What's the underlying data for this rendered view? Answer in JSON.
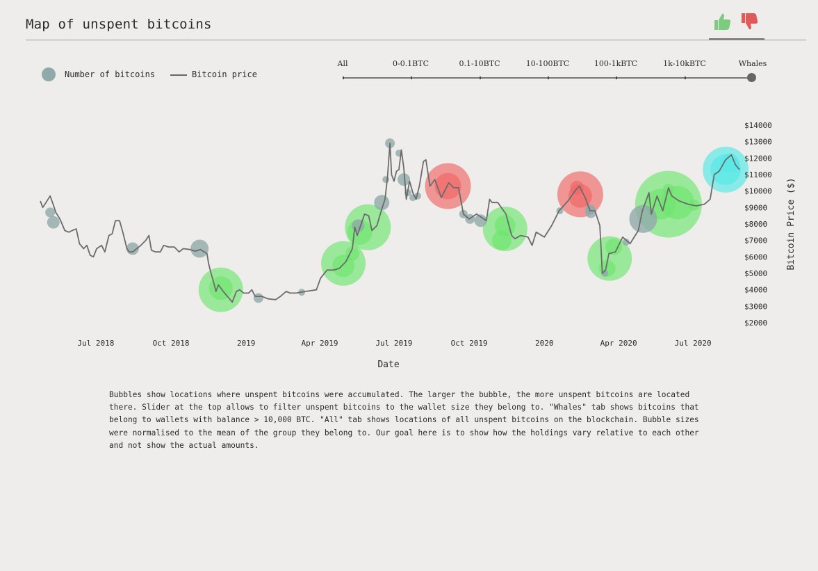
{
  "header": {
    "title": "Map of unspent bitcoins"
  },
  "feedback": {
    "like_icon": "thumbs-up-icon",
    "dislike_icon": "thumbs-down-icon",
    "like_color": "#7ccb7e",
    "dislike_color": "#e05a5a"
  },
  "legend": {
    "bubble_label": "Number of bitcoins",
    "line_label": "Bitcoin price",
    "bubble_color": "#90a9aa",
    "line_color": "#666666"
  },
  "slider": {
    "options": [
      "All",
      "0-0.1BTC",
      "0.1-10BTC",
      "10-100BTC",
      "100-1kBTC",
      "1k-10kBTC",
      "Whales"
    ],
    "selected": "Whales"
  },
  "chart_data": {
    "type": "scatter",
    "xlabel": "Date",
    "ylabel": "Bitcoin Price ($)",
    "x_ticks": [
      "Jul 2018",
      "Oct 2018",
      "2019",
      "Apr 2019",
      "Jul 2019",
      "Oct 2019",
      "2020",
      "Apr 2020",
      "Jul 2020"
    ],
    "y_ticks": [
      "$2000",
      "$3000",
      "$4000",
      "$5000",
      "$6000",
      "$7000",
      "$8000",
      "$9000",
      "$10000",
      "$11000",
      "$12000",
      "$13000",
      "$14000"
    ],
    "ylim": [
      2000,
      14000
    ],
    "xlim": [
      "2018-04-24",
      "2020-09-01"
    ],
    "grid": false,
    "series": [
      {
        "name": "Bitcoin price",
        "style": "line",
        "color": "#6b6b6b",
        "points": [
          [
            "2018-04-24",
            9400
          ],
          [
            "2018-04-27",
            9000
          ],
          [
            "2018-05-01",
            9300
          ],
          [
            "2018-05-06",
            9700
          ],
          [
            "2018-05-09",
            9300
          ],
          [
            "2018-05-13",
            8700
          ],
          [
            "2018-05-18",
            8300
          ],
          [
            "2018-05-24",
            7600
          ],
          [
            "2018-05-29",
            7500
          ],
          [
            "2018-06-02",
            7600
          ],
          [
            "2018-06-07",
            7700
          ],
          [
            "2018-06-11",
            6800
          ],
          [
            "2018-06-16",
            6500
          ],
          [
            "2018-06-20",
            6700
          ],
          [
            "2018-06-24",
            6100
          ],
          [
            "2018-06-28",
            6000
          ],
          [
            "2018-07-02",
            6500
          ],
          [
            "2018-07-08",
            6700
          ],
          [
            "2018-07-12",
            6300
          ],
          [
            "2018-07-17",
            7300
          ],
          [
            "2018-07-21",
            7400
          ],
          [
            "2018-07-25",
            8200
          ],
          [
            "2018-07-30",
            8200
          ],
          [
            "2018-08-03",
            7500
          ],
          [
            "2018-08-08",
            6500
          ],
          [
            "2018-08-11",
            6300
          ],
          [
            "2018-08-15",
            6300
          ],
          [
            "2018-08-20",
            6500
          ],
          [
            "2018-08-25",
            6700
          ],
          [
            "2018-08-31",
            7000
          ],
          [
            "2018-09-04",
            7300
          ],
          [
            "2018-09-07",
            6400
          ],
          [
            "2018-09-12",
            6300
          ],
          [
            "2018-09-18",
            6300
          ],
          [
            "2018-09-22",
            6700
          ],
          [
            "2018-09-28",
            6600
          ],
          [
            "2018-10-05",
            6600
          ],
          [
            "2018-10-11",
            6300
          ],
          [
            "2018-10-16",
            6500
          ],
          [
            "2018-10-24",
            6450
          ],
          [
            "2018-10-31",
            6350
          ],
          [
            "2018-11-06",
            6450
          ],
          [
            "2018-11-14",
            6200
          ],
          [
            "2018-11-16",
            5600
          ],
          [
            "2018-11-19",
            5000
          ],
          [
            "2018-11-23",
            4300
          ],
          [
            "2018-11-25",
            3900
          ],
          [
            "2018-11-28",
            4300
          ],
          [
            "2018-12-04",
            3900
          ],
          [
            "2018-12-09",
            3600
          ],
          [
            "2018-12-15",
            3250
          ],
          [
            "2018-12-20",
            3900
          ],
          [
            "2018-12-24",
            4000
          ],
          [
            "2018-12-29",
            3800
          ],
          [
            "2019-01-04",
            3800
          ],
          [
            "2019-01-08",
            4000
          ],
          [
            "2019-01-12",
            3600
          ],
          [
            "2019-01-20",
            3600
          ],
          [
            "2019-01-28",
            3450
          ],
          [
            "2019-02-06",
            3400
          ],
          [
            "2019-02-12",
            3600
          ],
          [
            "2019-02-19",
            3900
          ],
          [
            "2019-02-24",
            3800
          ],
          [
            "2019-03-03",
            3800
          ],
          [
            "2019-03-15",
            3900
          ],
          [
            "2019-03-28",
            4000
          ],
          [
            "2019-04-02",
            4700
          ],
          [
            "2019-04-10",
            5200
          ],
          [
            "2019-04-18",
            5200
          ],
          [
            "2019-04-25",
            5300
          ],
          [
            "2019-05-03",
            5700
          ],
          [
            "2019-05-11",
            6500
          ],
          [
            "2019-05-14",
            7800
          ],
          [
            "2019-05-17",
            7300
          ],
          [
            "2019-05-26",
            8600
          ],
          [
            "2019-05-31",
            8500
          ],
          [
            "2019-06-04",
            7600
          ],
          [
            "2019-06-10",
            7900
          ],
          [
            "2019-06-16",
            8900
          ],
          [
            "2019-06-20",
            9500
          ],
          [
            "2019-06-23",
            10800
          ],
          [
            "2019-06-26",
            12900
          ],
          [
            "2019-06-28",
            11000
          ],
          [
            "2019-07-01",
            10600
          ],
          [
            "2019-07-04",
            11200
          ],
          [
            "2019-07-07",
            11300
          ],
          [
            "2019-07-10",
            12500
          ],
          [
            "2019-07-13",
            11400
          ],
          [
            "2019-07-16",
            9500
          ],
          [
            "2019-07-20",
            10600
          ],
          [
            "2019-07-24",
            9900
          ],
          [
            "2019-07-28",
            9500
          ],
          [
            "2019-08-01",
            10300
          ],
          [
            "2019-08-06",
            11800
          ],
          [
            "2019-08-09",
            11900
          ],
          [
            "2019-08-14",
            10300
          ],
          [
            "2019-08-20",
            10700
          ],
          [
            "2019-08-28",
            9600
          ],
          [
            "2019-09-06",
            10500
          ],
          [
            "2019-09-12",
            10200
          ],
          [
            "2019-09-18",
            10200
          ],
          [
            "2019-09-24",
            8600
          ],
          [
            "2019-10-01",
            8300
          ],
          [
            "2019-10-10",
            8600
          ],
          [
            "2019-10-22",
            8200
          ],
          [
            "2019-10-26",
            9500
          ],
          [
            "2019-10-29",
            9300
          ],
          [
            "2019-11-05",
            9300
          ],
          [
            "2019-11-15",
            8600
          ],
          [
            "2019-11-22",
            7300
          ],
          [
            "2019-11-26",
            7100
          ],
          [
            "2019-12-03",
            7300
          ],
          [
            "2019-12-12",
            7200
          ],
          [
            "2019-12-17",
            6700
          ],
          [
            "2019-12-22",
            7500
          ],
          [
            "2020-01-01",
            7200
          ],
          [
            "2020-01-10",
            7900
          ],
          [
            "2020-01-19",
            8800
          ],
          [
            "2020-01-30",
            9400
          ],
          [
            "2020-02-09",
            10100
          ],
          [
            "2020-02-13",
            10300
          ],
          [
            "2020-02-20",
            9600
          ],
          [
            "2020-02-26",
            8800
          ],
          [
            "2020-03-03",
            8800
          ],
          [
            "2020-03-09",
            7900
          ],
          [
            "2020-03-12",
            5000
          ],
          [
            "2020-03-16",
            5200
          ],
          [
            "2020-03-20",
            6200
          ],
          [
            "2020-03-28",
            6300
          ],
          [
            "2020-04-06",
            7200
          ],
          [
            "2020-04-15",
            6800
          ],
          [
            "2020-04-25",
            7600
          ],
          [
            "2020-04-30",
            8800
          ],
          [
            "2020-05-08",
            9900
          ],
          [
            "2020-05-11",
            8600
          ],
          [
            "2020-05-18",
            9700
          ],
          [
            "2020-05-25",
            8800
          ],
          [
            "2020-06-01",
            10200
          ],
          [
            "2020-06-05",
            9700
          ],
          [
            "2020-06-14",
            9400
          ],
          [
            "2020-06-25",
            9200
          ],
          [
            "2020-07-05",
            9100
          ],
          [
            "2020-07-15",
            9200
          ],
          [
            "2020-07-22",
            9500
          ],
          [
            "2020-07-27",
            11000
          ],
          [
            "2020-08-02",
            11200
          ],
          [
            "2020-08-10",
            11900
          ],
          [
            "2020-08-17",
            12200
          ],
          [
            "2020-08-22",
            11600
          ],
          [
            "2020-08-27",
            11300
          ]
        ]
      },
      {
        "name": "Number of bitcoins",
        "style": "bubble",
        "categories": {
          "neutral": "#90a9aa",
          "accumulate": "#6de56d",
          "distribute": "#ef6565",
          "current": "#54e8e6"
        },
        "points": [
          {
            "x": "2018-05-06",
            "y": 8700,
            "r": 7,
            "c": "neutral"
          },
          {
            "x": "2018-05-10",
            "y": 8100,
            "r": 9,
            "c": "neutral"
          },
          {
            "x": "2018-08-15",
            "y": 6500,
            "r": 9,
            "c": "neutral"
          },
          {
            "x": "2018-11-05",
            "y": 6500,
            "r": 13,
            "c": "neutral"
          },
          {
            "x": "2018-12-01",
            "y": 4000,
            "r": 32,
            "c": "accumulate"
          },
          {
            "x": "2018-12-01",
            "y": 4100,
            "r": 17,
            "c": "accumulate"
          },
          {
            "x": "2019-01-16",
            "y": 3500,
            "r": 7,
            "c": "neutral"
          },
          {
            "x": "2019-03-10",
            "y": 3850,
            "r": 5,
            "c": "neutral"
          },
          {
            "x": "2019-04-30",
            "y": 5600,
            "r": 32,
            "c": "accumulate"
          },
          {
            "x": "2019-04-30",
            "y": 5450,
            "r": 16,
            "c": "accumulate"
          },
          {
            "x": "2019-05-11",
            "y": 6200,
            "r": 10,
            "c": "accumulate"
          },
          {
            "x": "2019-05-30",
            "y": 7800,
            "r": 33,
            "c": "accumulate"
          },
          {
            "x": "2019-05-20",
            "y": 7500,
            "r": 18,
            "c": "accumulate"
          },
          {
            "x": "2019-05-18",
            "y": 7900,
            "r": 9,
            "c": "neutral"
          },
          {
            "x": "2019-06-16",
            "y": 9300,
            "r": 11,
            "c": "neutral"
          },
          {
            "x": "2019-06-21",
            "y": 10700,
            "r": 5,
            "c": "neutral"
          },
          {
            "x": "2019-06-26",
            "y": 12900,
            "r": 7,
            "c": "neutral"
          },
          {
            "x": "2019-07-07",
            "y": 12300,
            "r": 5,
            "c": "neutral"
          },
          {
            "x": "2019-07-13",
            "y": 10700,
            "r": 9,
            "c": "neutral"
          },
          {
            "x": "2019-07-18",
            "y": 9900,
            "r": 5,
            "c": "neutral"
          },
          {
            "x": "2019-07-24",
            "y": 9600,
            "r": 5,
            "c": "neutral"
          },
          {
            "x": "2019-07-30",
            "y": 9700,
            "r": 5,
            "c": "neutral"
          },
          {
            "x": "2019-09-05",
            "y": 10300,
            "r": 33,
            "c": "distribute"
          },
          {
            "x": "2019-09-05",
            "y": 10300,
            "r": 19,
            "c": "distribute"
          },
          {
            "x": "2019-09-24",
            "y": 8600,
            "r": 6,
            "c": "neutral"
          },
          {
            "x": "2019-10-02",
            "y": 8300,
            "r": 7,
            "c": "neutral"
          },
          {
            "x": "2019-10-15",
            "y": 8200,
            "r": 9,
            "c": "neutral"
          },
          {
            "x": "2019-11-14",
            "y": 7700,
            "r": 32,
            "c": "accumulate"
          },
          {
            "x": "2019-11-14",
            "y": 7900,
            "r": 15,
            "c": "accumulate"
          },
          {
            "x": "2019-11-10",
            "y": 7000,
            "r": 14,
            "c": "accumulate"
          },
          {
            "x": "2020-01-20",
            "y": 8800,
            "r": 5,
            "c": "neutral"
          },
          {
            "x": "2020-02-14",
            "y": 9800,
            "r": 33,
            "c": "distribute"
          },
          {
            "x": "2020-02-14",
            "y": 9700,
            "r": 17,
            "c": "distribute"
          },
          {
            "x": "2020-02-10",
            "y": 10200,
            "r": 10,
            "c": "distribute"
          },
          {
            "x": "2020-02-26",
            "y": 8900,
            "r": 7,
            "c": "neutral"
          },
          {
            "x": "2020-02-27",
            "y": 8700,
            "r": 8,
            "c": "neutral"
          },
          {
            "x": "2020-03-21",
            "y": 5900,
            "r": 32,
            "c": "accumulate"
          },
          {
            "x": "2020-03-18",
            "y": 5300,
            "r": 12,
            "c": "accumulate"
          },
          {
            "x": "2020-03-26",
            "y": 6600,
            "r": 12,
            "c": "accumulate"
          },
          {
            "x": "2020-03-15",
            "y": 5000,
            "r": 5,
            "c": "neutral"
          },
          {
            "x": "2020-04-10",
            "y": 6900,
            "r": 5,
            "c": "neutral"
          },
          {
            "x": "2020-05-01",
            "y": 8300,
            "r": 20,
            "c": "neutral"
          },
          {
            "x": "2020-06-01",
            "y": 9200,
            "r": 48,
            "c": "accumulate"
          },
          {
            "x": "2020-05-22",
            "y": 9200,
            "r": 22,
            "c": "accumulate"
          },
          {
            "x": "2020-06-12",
            "y": 9300,
            "r": 24,
            "c": "accumulate"
          },
          {
            "x": "2020-07-02",
            "y": 9150,
            "r": 8,
            "c": "accumulate"
          },
          {
            "x": "2020-06-01",
            "y": 10100,
            "r": 8,
            "c": "accumulate"
          },
          {
            "x": "2020-08-10",
            "y": 11300,
            "r": 33,
            "c": "current"
          },
          {
            "x": "2020-08-10",
            "y": 11300,
            "r": 22,
            "c": "current"
          },
          {
            "x": "2020-08-15",
            "y": 11700,
            "r": 14,
            "c": "current"
          }
        ]
      }
    ]
  },
  "description": "Bubbles show locations where unspent bitcoins were accumulated. The larger the bubble, the more unspent bitcoins are located there. Slider at the top allows to filter unspent bitcoins to the wallet size they belong to. \"Whales\" tab shows bitcoins that belong to wallets with balance > 10,000 BTC. \"All\" tab shows locations of all unspent bitcoins on the blockchain. Bubble sizes were normalised to the mean of the group they belong to. Our goal here is to show how the holdings vary relative to each other and not show the actual amounts."
}
